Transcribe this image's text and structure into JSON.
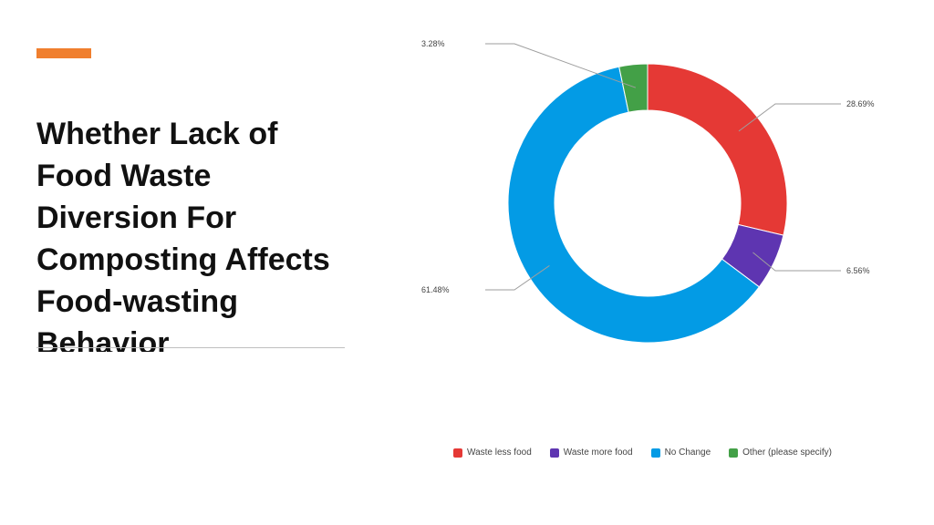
{
  "slide": {
    "title_lines": [
      "Whether Lack of",
      "Food Waste",
      "Diversion For",
      "Composting Affects",
      "Food-wasting",
      "Behavior"
    ],
    "accent_color": "#f07f2e"
  },
  "chart_data": {
    "type": "pie",
    "variant": "donut",
    "categories": [
      "Waste less food",
      "Waste more food",
      "No Change",
      "Other (please specify)"
    ],
    "values": [
      28.69,
      6.56,
      61.48,
      3.28
    ],
    "value_labels": [
      "28.69%",
      "6.56%",
      "61.48%",
      "3.28%"
    ],
    "colors": [
      "#e53935",
      "#5e35b1",
      "#039be5",
      "#43a047"
    ],
    "start_angle_deg": 0,
    "direction": "clockwise",
    "legend_position": "bottom"
  }
}
